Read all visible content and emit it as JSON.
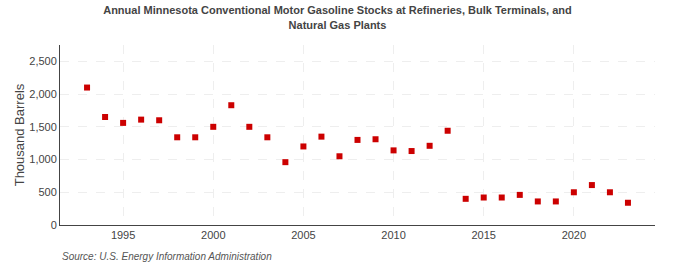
{
  "chart_data": {
    "type": "scatter",
    "title": "Annual Minnesota Conventional Motor Gasoline Stocks at Refineries, Bulk Terminals, and\nNatural Gas Plants",
    "ylabel": "Thousand Barrels",
    "annotations": [
      "Source: U.S. Energy Information Administration"
    ],
    "x": [
      1993,
      1994,
      1995,
      1996,
      1997,
      1998,
      1999,
      2000,
      2001,
      2002,
      2003,
      2004,
      2005,
      2006,
      2007,
      2008,
      2009,
      2010,
      2011,
      2012,
      2013,
      2014,
      2015,
      2016,
      2017,
      2018,
      2019,
      2020,
      2021,
      2022,
      2023
    ],
    "values": [
      2100,
      1650,
      1560,
      1610,
      1600,
      1340,
      1340,
      1500,
      1830,
      1500,
      1340,
      960,
      1200,
      1350,
      1050,
      1300,
      1310,
      1140,
      1130,
      1210,
      1440,
      400,
      420,
      420,
      460,
      360,
      360,
      500,
      610,
      500,
      340
    ],
    "color": "#cc0000",
    "marker": "square",
    "xlim": [
      1991.5,
      2024.5
    ],
    "xticks": [
      1995,
      2000,
      2005,
      2010,
      2015,
      2020
    ],
    "ylim": [
      0,
      2750
    ],
    "yticks": [
      0,
      500,
      {
        "value": 1000,
        "label": "1,000"
      },
      {
        "value": 1500,
        "label": "1,500"
      },
      {
        "value": 2000,
        "label": "2,000"
      },
      {
        "value": 2500,
        "label": "2,500"
      }
    ],
    "grid": true
  }
}
